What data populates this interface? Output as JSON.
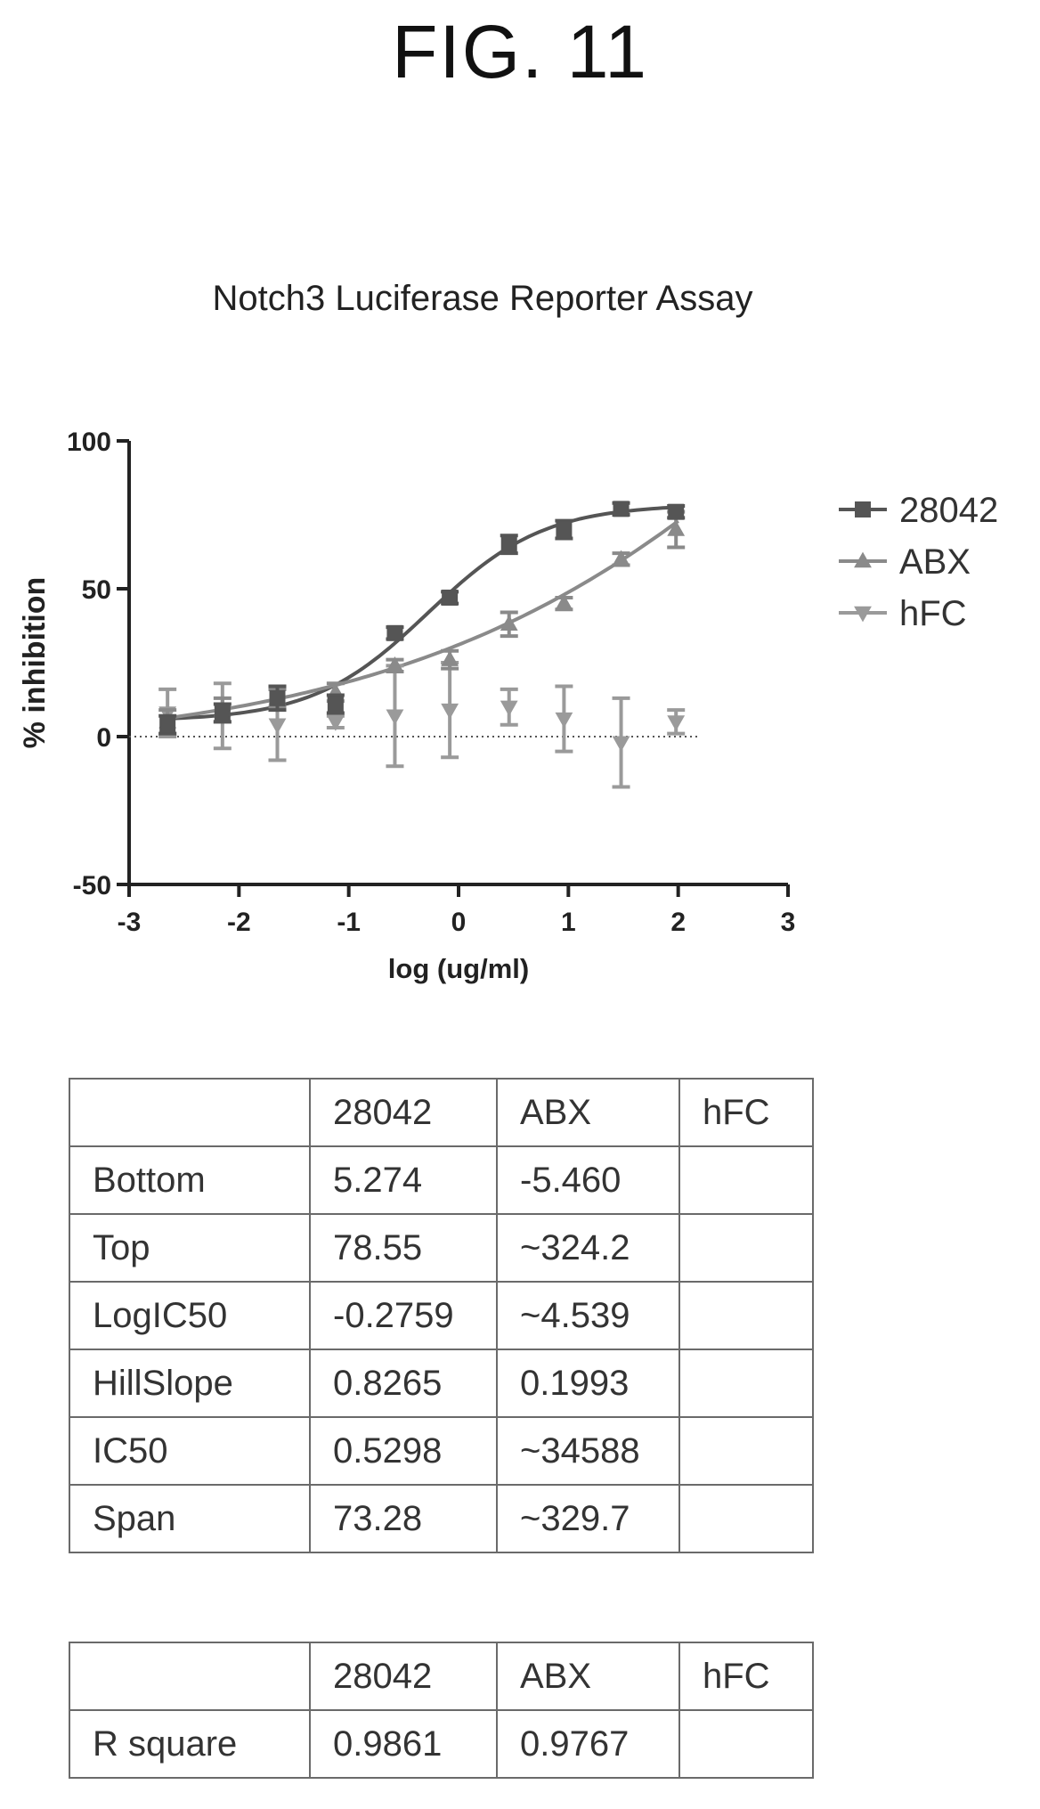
{
  "figure_label": "FIG. 11",
  "chart_data": {
    "type": "scatter",
    "title": "Notch3 Luciferase Reporter Assay",
    "xlabel": "log (ug/ml)",
    "ylabel": "% inhibition",
    "xlim": [
      -3,
      3
    ],
    "ylim": [
      -50,
      100
    ],
    "xticks": [
      -3,
      -2,
      -1,
      0,
      1,
      2,
      3
    ],
    "yticks": [
      -50,
      0,
      50,
      100
    ],
    "reference_line_y": 0,
    "legend_position": "right",
    "series": [
      {
        "name": "28042",
        "marker": "square",
        "color": "#555555",
        "x": [
          -2.65,
          -2.15,
          -1.65,
          -1.12,
          -0.58,
          -0.08,
          0.46,
          0.96,
          1.48,
          1.98
        ],
        "y": [
          4,
          8,
          13,
          11,
          35,
          47,
          65,
          70,
          77,
          76
        ],
        "err": [
          3,
          3,
          4,
          3,
          2,
          2,
          3,
          3,
          2,
          2
        ],
        "fit": {
          "bottom": 5.274,
          "top": 78.55,
          "logic50": -0.2759,
          "hillslope": 0.8265
        }
      },
      {
        "name": "ABX",
        "marker": "triangle-up",
        "color": "#8a8a8a",
        "x": [
          -2.65,
          -2.15,
          -1.65,
          -1.12,
          -0.58,
          -0.08,
          0.46,
          0.96,
          1.48,
          1.98
        ],
        "y": [
          5,
          9,
          13,
          15,
          24,
          26,
          38,
          45,
          60,
          70
        ],
        "err": [
          4,
          4,
          3,
          3,
          2,
          3,
          4,
          2,
          2,
          6
        ],
        "fit": {
          "bottom": -5.46,
          "top": 324.2,
          "logic50": 4.539,
          "hillslope": 0.1993
        }
      },
      {
        "name": "hFC",
        "marker": "triangle-down",
        "color": "#9a9a9a",
        "x": [
          -2.65,
          -2.15,
          -1.65,
          -1.12,
          -0.58,
          -0.08,
          0.46,
          0.96,
          1.48,
          1.98
        ],
        "y": [
          8,
          7,
          4,
          5,
          7,
          9,
          10,
          6,
          -2,
          5
        ],
        "err": [
          8,
          11,
          12,
          2,
          17,
          16,
          6,
          11,
          15,
          4
        ]
      }
    ]
  },
  "params_table": {
    "header": [
      "",
      "28042",
      "ABX",
      "hFC"
    ],
    "rows": [
      [
        "Bottom",
        "5.274",
        "-5.460",
        ""
      ],
      [
        "Top",
        "78.55",
        "~324.2",
        ""
      ],
      [
        "LogIC50",
        "-0.2759",
        "~4.539",
        ""
      ],
      [
        "HillSlope",
        "0.8265",
        "0.1993",
        ""
      ],
      [
        "IC50",
        "0.5298",
        "~34588",
        ""
      ],
      [
        "Span",
        "73.28",
        "~329.7",
        ""
      ]
    ]
  },
  "rsq_table": {
    "header": [
      "",
      "28042",
      "ABX",
      "hFC"
    ],
    "rows": [
      [
        "R square",
        "0.9861",
        "0.9767",
        ""
      ]
    ]
  }
}
